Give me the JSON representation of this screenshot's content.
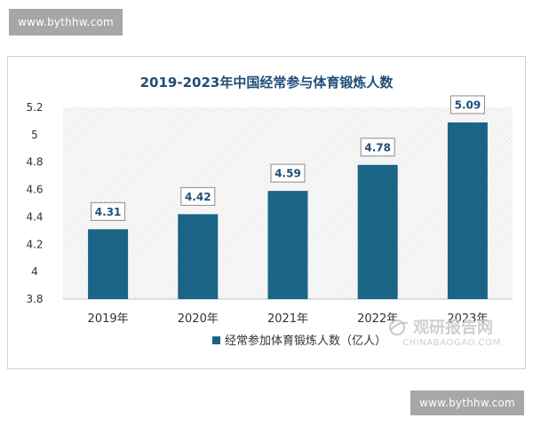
{
  "watermark": {
    "top": "www.bythhw.com",
    "bottom": "www.bythhw.com"
  },
  "logo": {
    "name": "观研报告网",
    "url": "CHINABAOGAO.COM"
  },
  "colors": {
    "bar": "#1a6585",
    "title": "#1f4e79",
    "watermark_bg": "#a7a7a7"
  },
  "chart_data": {
    "type": "bar",
    "title": "2019-2023年中国经常参与体育锻炼人数",
    "categories": [
      "2019年",
      "2020年",
      "2021年",
      "2022年",
      "2023年"
    ],
    "series": [
      {
        "name": "经常参加体育锻炼人数（亿人）",
        "values": [
          4.31,
          4.42,
          4.59,
          4.78,
          5.09
        ]
      }
    ],
    "data_labels": [
      "4.31",
      "4.42",
      "4.59",
      "4.78",
      "5.09"
    ],
    "ylim": [
      3.8,
      5.2
    ],
    "yticks": [
      3.8,
      4,
      4.2,
      4.4,
      4.6,
      4.8,
      5,
      5.2
    ],
    "ytick_labels": [
      "3.8",
      "4",
      "4.2",
      "4.4",
      "4.6",
      "4.8",
      "5",
      "5.2"
    ],
    "grid": false,
    "legend_position": "bottom"
  }
}
